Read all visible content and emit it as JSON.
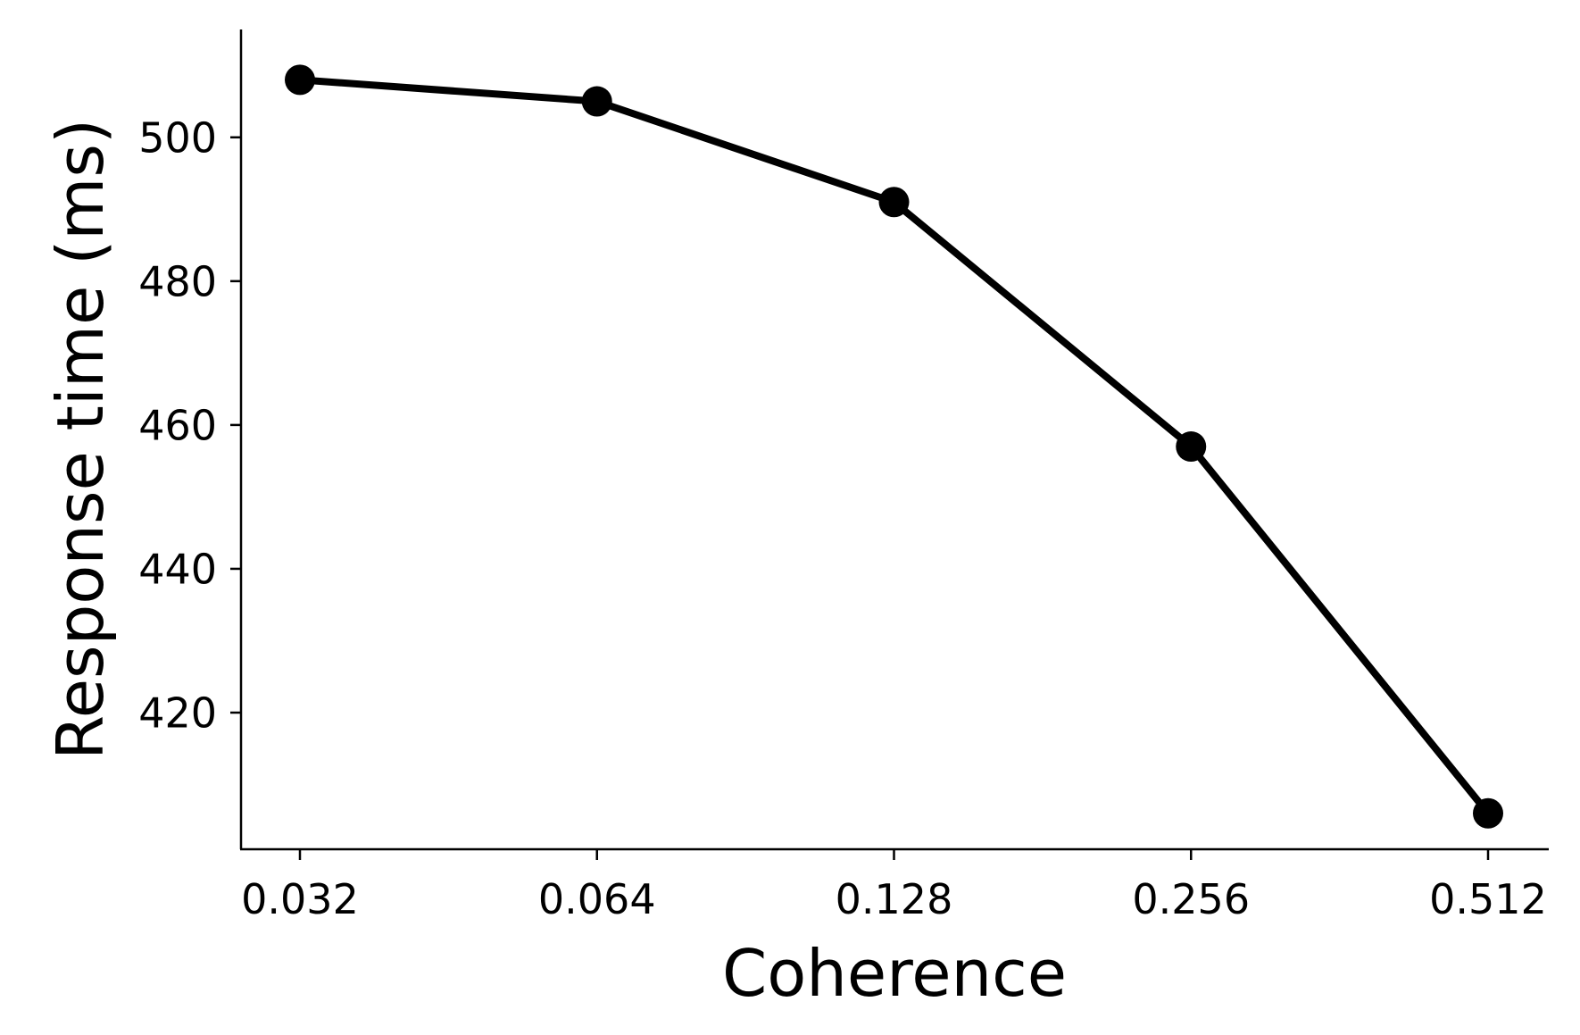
{
  "chart_data": {
    "type": "line",
    "title": "",
    "xlabel": "Coherence",
    "ylabel": "Response time (ms)",
    "x_scale": "log2",
    "x": [
      0.032,
      0.064,
      0.128,
      0.256,
      0.512
    ],
    "x_tick_labels": [
      "0.032",
      "0.064",
      "0.128",
      "0.256",
      "0.512"
    ],
    "y_ticks": [
      420,
      440,
      460,
      480,
      500
    ],
    "y_tick_labels": [
      "420",
      "440",
      "460",
      "480",
      "500"
    ],
    "ylim": [
      401,
      515
    ],
    "grid": false,
    "legend": "none",
    "series": [
      {
        "values": [
          508,
          505,
          491,
          457,
          406
        ],
        "color": "#000000",
        "marker": "circle"
      }
    ]
  }
}
